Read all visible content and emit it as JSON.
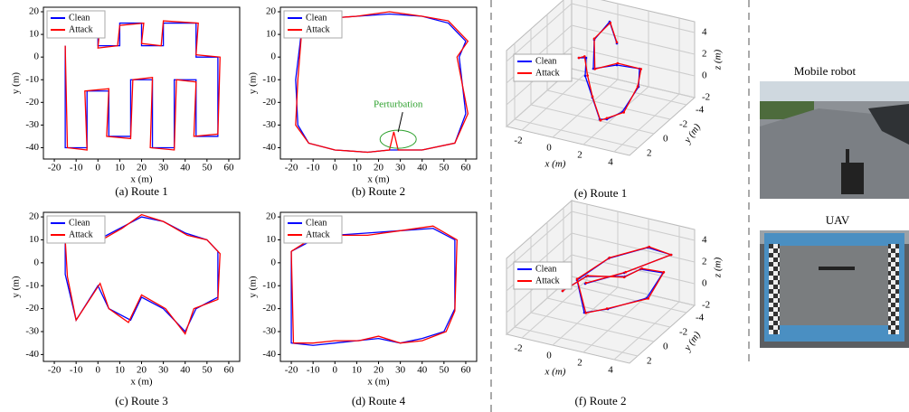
{
  "chart_data": [
    {
      "type": "line",
      "caption": "(a) Route 1",
      "xlabel": "x (m)",
      "ylabel": "y (m)",
      "xlim": [
        -25,
        65
      ],
      "ylim": [
        -45,
        22
      ],
      "xticks": [
        -20,
        -10,
        0,
        10,
        20,
        30,
        40,
        50,
        60
      ],
      "yticks": [
        -40,
        -30,
        -20,
        -10,
        0,
        10,
        20
      ],
      "legend": "upper left",
      "series": [
        {
          "name": "Clean",
          "color": "#0000ff",
          "x": [
            -15,
            -15,
            -5,
            -5,
            5,
            5,
            15,
            15,
            25,
            25,
            35,
            35,
            45,
            45,
            55,
            55,
            45,
            45,
            30,
            30,
            20,
            20,
            10,
            10,
            0,
            0,
            -15
          ],
          "y": [
            5,
            -40,
            -40,
            -15,
            -15,
            -35,
            -35,
            -10,
            -10,
            -40,
            -40,
            -10,
            -10,
            -35,
            -35,
            0,
            0,
            15,
            15,
            5,
            5,
            15,
            15,
            5,
            5,
            15,
            15
          ]
        },
        {
          "name": "Attack",
          "color": "#ff0000",
          "x": [
            -15,
            -14,
            -5,
            -6,
            5,
            4,
            15,
            16,
            25,
            24,
            35,
            36,
            45,
            44,
            55,
            56,
            45,
            46,
            30,
            29,
            20,
            21,
            10,
            9,
            0,
            1,
            -15
          ],
          "y": [
            5,
            -40,
            -41,
            -15,
            -14,
            -35,
            -36,
            -10,
            -9,
            -40,
            -41,
            -10,
            -11,
            -35,
            -34,
            0,
            1,
            15,
            16,
            5,
            6,
            15,
            14,
            5,
            4,
            15,
            15
          ]
        }
      ]
    },
    {
      "type": "line",
      "caption": "(b) Route 2",
      "xlabel": "x (m)",
      "ylabel": "y (m)",
      "xlim": [
        -25,
        65
      ],
      "ylim": [
        -45,
        22
      ],
      "xticks": [
        -20,
        -10,
        0,
        10,
        20,
        30,
        40,
        50,
        60
      ],
      "yticks": [
        -40,
        -30,
        -20,
        -10,
        0,
        10,
        20
      ],
      "legend": "upper left",
      "annotation": "Perturbation",
      "series": [
        {
          "name": "Clean",
          "color": "#0000ff",
          "x": [
            -15,
            -18,
            -17,
            -12,
            0,
            15,
            25,
            40,
            55,
            60,
            57,
            60,
            52,
            40,
            25,
            10,
            -5,
            -15
          ],
          "y": [
            14,
            -10,
            -30,
            -38,
            -41,
            -42,
            -41,
            -41,
            -38,
            -25,
            0,
            7,
            15,
            18,
            19,
            18,
            17,
            14
          ]
        },
        {
          "name": "Attack",
          "color": "#ff0000",
          "x": [
            -15,
            -17,
            -18,
            -12,
            0,
            15,
            25,
            27,
            29,
            40,
            55,
            61,
            56,
            61,
            52,
            40,
            25,
            10,
            -5,
            -15
          ],
          "y": [
            14,
            -10,
            -30,
            -38,
            -41,
            -42,
            -41,
            -33,
            -41,
            -41,
            -38,
            -25,
            0,
            7,
            16,
            18,
            20,
            18,
            17,
            14
          ]
        }
      ]
    },
    {
      "type": "line",
      "caption": "(c) Route 3",
      "xlabel": "x (m)",
      "ylabel": "y (m)",
      "xlim": [
        -25,
        65
      ],
      "ylim": [
        -43,
        22
      ],
      "xticks": [
        -20,
        -10,
        0,
        10,
        20,
        30,
        40,
        50,
        60
      ],
      "yticks": [
        -40,
        -30,
        -20,
        -10,
        0,
        10,
        20
      ],
      "legend": "upper left",
      "series": [
        {
          "name": "Clean",
          "color": "#0000ff",
          "x": [
            -15,
            -10,
            0,
            10,
            20,
            30,
            40,
            50,
            55,
            55,
            45,
            40,
            30,
            20,
            15,
            5,
            0,
            -10,
            -15,
            -15
          ],
          "y": [
            10,
            15,
            10,
            15,
            20,
            18,
            13,
            10,
            5,
            -15,
            -20,
            -30,
            -20,
            -15,
            -25,
            -20,
            -10,
            -25,
            -5,
            10
          ]
        },
        {
          "name": "Attack",
          "color": "#ff0000",
          "x": [
            -15,
            -9,
            0,
            11,
            20,
            30,
            41,
            50,
            56,
            55,
            44,
            40,
            31,
            20,
            14,
            5,
            1,
            -10,
            -14,
            -15
          ],
          "y": [
            10,
            16,
            9,
            15,
            21,
            18,
            12,
            10,
            4,
            -16,
            -20,
            -31,
            -20,
            -14,
            -26,
            -20,
            -9,
            -25,
            -6,
            10
          ]
        }
      ]
    },
    {
      "type": "line",
      "caption": "(d) Route 4",
      "xlabel": "x (m)",
      "ylabel": "y (m)",
      "xlim": [
        -25,
        65
      ],
      "ylim": [
        -43,
        22
      ],
      "xticks": [
        -20,
        -10,
        0,
        10,
        20,
        30,
        40,
        50,
        60
      ],
      "yticks": [
        -40,
        -30,
        -20,
        -10,
        0,
        10,
        20
      ],
      "legend": "upper left",
      "series": [
        {
          "name": "Clean",
          "color": "#0000ff",
          "x": [
            -20,
            -20,
            -10,
            0,
            10,
            20,
            30,
            40,
            50,
            55,
            55,
            45,
            30,
            15,
            0,
            -10,
            -20
          ],
          "y": [
            5,
            -35,
            -36,
            -35,
            -34,
            -33,
            -35,
            -33,
            -30,
            -20,
            10,
            15,
            14,
            13,
            12,
            10,
            5
          ]
        },
        {
          "name": "Attack",
          "color": "#ff0000",
          "x": [
            -20,
            -19,
            -10,
            0,
            11,
            20,
            30,
            40,
            51,
            55,
            56,
            45,
            30,
            15,
            0,
            -10,
            -20
          ],
          "y": [
            5,
            -35,
            -35,
            -34,
            -34,
            -32,
            -35,
            -34,
            -30,
            -21,
            10,
            16,
            14,
            12,
            12,
            11,
            5
          ]
        }
      ]
    },
    {
      "type": "line3d",
      "caption": "(e) Route 1",
      "xlabel": "x (m)",
      "ylabel": "y (m)",
      "zlabel": "z (m)",
      "xlim": [
        -3,
        5
      ],
      "ylim": [
        -5,
        3
      ],
      "zlim": [
        -2,
        5
      ],
      "xticks": [
        -2,
        0,
        2,
        4
      ],
      "yticks": [
        -4,
        -2,
        0,
        2
      ],
      "zticks": [
        -2,
        0,
        2,
        4
      ],
      "legend": "upper left",
      "series": [
        {
          "name": "Clean",
          "color": "#0000ff",
          "x": [
            -2,
            -1,
            0,
            1,
            2,
            3,
            4,
            4,
            3,
            1,
            0,
            -1,
            0,
            1
          ],
          "y": [
            -4,
            -3,
            -1,
            0,
            1,
            2,
            2,
            0,
            -2,
            -3,
            -2,
            -4,
            -4,
            -3
          ],
          "z": [
            0,
            1,
            1,
            0,
            -1,
            0,
            1,
            2,
            2,
            1,
            1,
            2,
            4,
            3
          ]
        },
        {
          "name": "Attack",
          "color": "#ff0000",
          "x": [
            -2,
            -1.1,
            0.1,
            1,
            2.1,
            3,
            4.1,
            4,
            3.1,
            1,
            0.1,
            -1,
            0.1,
            1
          ],
          "y": [
            -4,
            -3,
            -1.1,
            0,
            1.1,
            2,
            2,
            0.1,
            -2,
            -3.1,
            -2,
            -4,
            -3.9,
            -3
          ],
          "z": [
            0,
            1.1,
            1,
            0.1,
            -1,
            0.1,
            1,
            2.1,
            2,
            1.1,
            1,
            2.1,
            4,
            3.1
          ]
        }
      ]
    },
    {
      "type": "line3d",
      "caption": "(f) Route 2",
      "xlabel": "x (m)",
      "ylabel": "y (m)",
      "zlabel": "z (m)",
      "xlim": [
        -3,
        5
      ],
      "ylim": [
        -5,
        3
      ],
      "zlim": [
        -2,
        5
      ],
      "xticks": [
        -2,
        0,
        2,
        4
      ],
      "yticks": [
        -4,
        -2,
        0,
        2
      ],
      "zticks": [
        -2,
        0,
        2,
        4
      ],
      "legend": "upper left",
      "series": [
        {
          "name": "Clean",
          "color": "#0000ff",
          "x": [
            -2,
            -1,
            1,
            2,
            4,
            4,
            2,
            1,
            0,
            1,
            3,
            4,
            2,
            0
          ],
          "y": [
            -2,
            -3,
            -4,
            -4,
            -3,
            -1,
            0,
            1,
            0,
            -2,
            -3,
            -4,
            -2,
            -1
          ],
          "z": [
            -1,
            0,
            0,
            1,
            2,
            1,
            0,
            0,
            2,
            3,
            4,
            3,
            2,
            1
          ]
        },
        {
          "name": "Attack",
          "color": "#ff0000",
          "x": [
            -2,
            -0.9,
            1,
            2.1,
            4,
            4.1,
            2,
            1.1,
            0,
            1,
            3.1,
            4,
            2.1,
            0
          ],
          "y": [
            -2,
            -3,
            -3.9,
            -4,
            -3.1,
            -1,
            0.1,
            1,
            0,
            -2.1,
            -3,
            -4,
            -2,
            -1.1
          ],
          "z": [
            -1,
            0.1,
            0,
            1.1,
            2,
            1,
            0.1,
            0,
            2.1,
            3,
            4.1,
            3,
            2.1,
            1
          ]
        }
      ]
    }
  ],
  "photos": [
    {
      "label": "Mobile robot"
    },
    {
      "label": "UAV"
    }
  ]
}
